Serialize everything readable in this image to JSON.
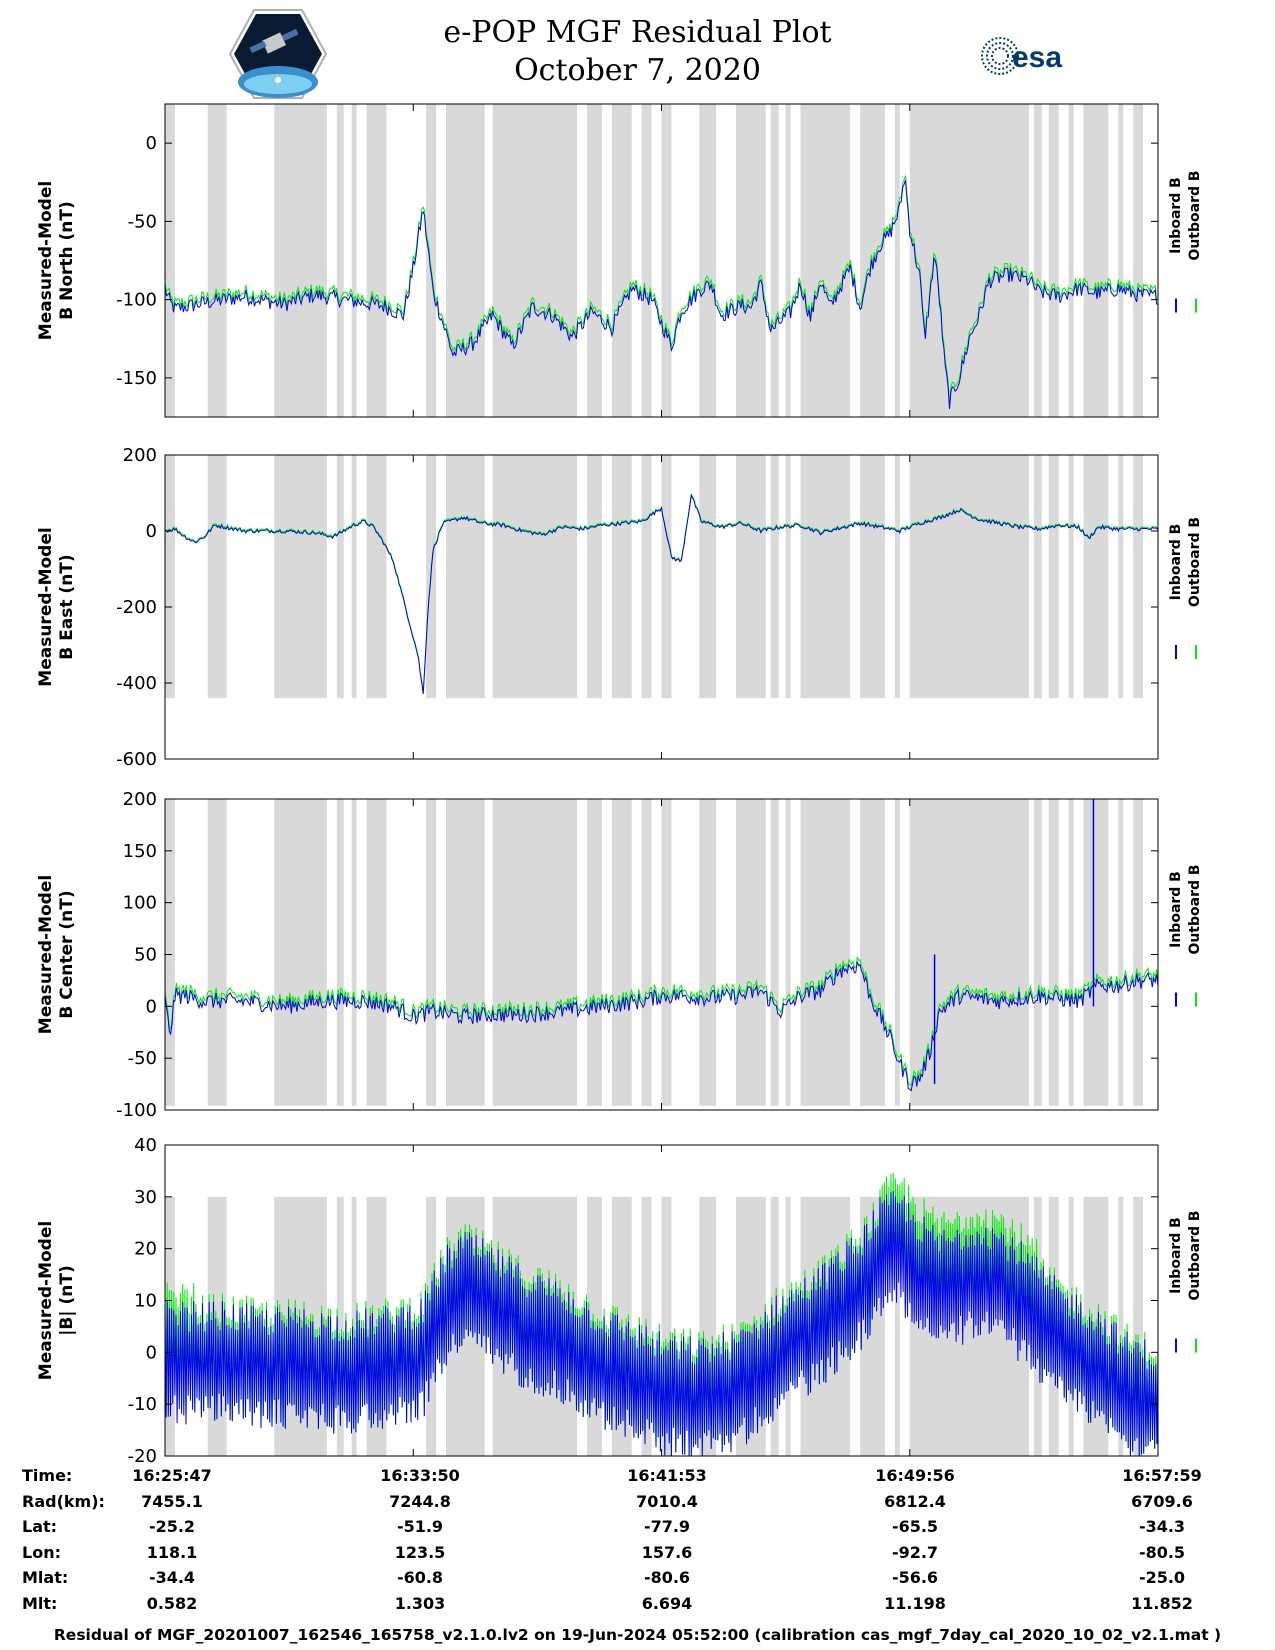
{
  "title": {
    "line1": "e-POP MGF Residual Plot",
    "line2": "October 7, 2020"
  },
  "logos": {
    "left_icon": "cassiope-satellite-logo",
    "right_text": "esa",
    "right_icon": "esa-logo"
  },
  "colors": {
    "inboard": "#0000ee",
    "outboard": "#00ee00",
    "shade": "#d9d9d9"
  },
  "chart_data": [
    {
      "type": "line",
      "ylabel_line1": "Measured-Model",
      "ylabel_line2": "B North (nT)",
      "ylim": [
        -175,
        25
      ],
      "yticks": [
        0,
        -50,
        -100,
        -150
      ],
      "shade_range": [
        -175,
        25
      ],
      "series": [
        {
          "name": "Inboard B"
        },
        {
          "name": "Outboard B"
        }
      ],
      "anchors": [
        [
          0,
          -93
        ],
        [
          0.005,
          -102
        ],
        [
          0.01,
          -106
        ],
        [
          0.04,
          -102
        ],
        [
          0.08,
          -98
        ],
        [
          0.12,
          -103
        ],
        [
          0.15,
          -97
        ],
        [
          0.17,
          -99
        ],
        [
          0.19,
          -101
        ],
        [
          0.22,
          -104
        ],
        [
          0.24,
          -110
        ],
        [
          0.25,
          -80
        ],
        [
          0.26,
          -42
        ],
        [
          0.27,
          -95
        ],
        [
          0.29,
          -135
        ],
        [
          0.31,
          -128
        ],
        [
          0.33,
          -110
        ],
        [
          0.35,
          -130
        ],
        [
          0.37,
          -105
        ],
        [
          0.39,
          -110
        ],
        [
          0.41,
          -124
        ],
        [
          0.43,
          -108
        ],
        [
          0.45,
          -118
        ],
        [
          0.47,
          -93
        ],
        [
          0.49,
          -100
        ],
        [
          0.51,
          -130
        ],
        [
          0.52,
          -107
        ],
        [
          0.54,
          -93
        ],
        [
          0.55,
          -90
        ],
        [
          0.56,
          -110
        ],
        [
          0.58,
          -104
        ],
        [
          0.59,
          -105
        ],
        [
          0.6,
          -90
        ],
        [
          0.61,
          -120
        ],
        [
          0.62,
          -114
        ],
        [
          0.63,
          -108
        ],
        [
          0.64,
          -90
        ],
        [
          0.65,
          -112
        ],
        [
          0.66,
          -88
        ],
        [
          0.67,
          -105
        ],
        [
          0.68,
          -92
        ],
        [
          0.69,
          -80
        ],
        [
          0.7,
          -105
        ],
        [
          0.71,
          -80
        ],
        [
          0.72,
          -65
        ],
        [
          0.73,
          -58
        ],
        [
          0.74,
          -42
        ],
        [
          0.745,
          -20
        ],
        [
          0.75,
          -55
        ],
        [
          0.76,
          -85
        ],
        [
          0.765,
          -125
        ],
        [
          0.77,
          -100
        ],
        [
          0.775,
          -70
        ],
        [
          0.78,
          -100
        ],
        [
          0.785,
          -140
        ],
        [
          0.79,
          -165
        ],
        [
          0.8,
          -150
        ],
        [
          0.81,
          -125
        ],
        [
          0.82,
          -110
        ],
        [
          0.83,
          -88
        ],
        [
          0.85,
          -84
        ],
        [
          0.87,
          -88
        ],
        [
          0.88,
          -95
        ],
        [
          0.9,
          -98
        ],
        [
          0.92,
          -93
        ],
        [
          0.94,
          -96
        ],
        [
          0.96,
          -93
        ],
        [
          0.98,
          -97
        ],
        [
          1.0,
          -98
        ]
      ],
      "noise": 5
    },
    {
      "type": "line",
      "ylabel_line1": "Measured-Model",
      "ylabel_line2": "B East (nT)",
      "ylim": [
        -600,
        200
      ],
      "yticks": [
        200,
        0,
        -200,
        -400,
        -600
      ],
      "shade_range": [
        -440,
        200
      ],
      "series": [
        {
          "name": "Inboard B"
        },
        {
          "name": "Outboard B"
        }
      ],
      "anchors": [
        [
          0,
          0
        ],
        [
          0.01,
          5
        ],
        [
          0.02,
          -15
        ],
        [
          0.03,
          -30
        ],
        [
          0.04,
          -15
        ],
        [
          0.05,
          15
        ],
        [
          0.08,
          0
        ],
        [
          0.12,
          0
        ],
        [
          0.15,
          -5
        ],
        [
          0.17,
          -15
        ],
        [
          0.19,
          15
        ],
        [
          0.2,
          25
        ],
        [
          0.21,
          10
        ],
        [
          0.22,
          -30
        ],
        [
          0.23,
          -80
        ],
        [
          0.24,
          -180
        ],
        [
          0.25,
          -280
        ],
        [
          0.255,
          -330
        ],
        [
          0.26,
          -430
        ],
        [
          0.265,
          -200
        ],
        [
          0.27,
          -50
        ],
        [
          0.28,
          20
        ],
        [
          0.3,
          35
        ],
        [
          0.32,
          20
        ],
        [
          0.34,
          15
        ],
        [
          0.36,
          0
        ],
        [
          0.38,
          -10
        ],
        [
          0.4,
          10
        ],
        [
          0.42,
          5
        ],
        [
          0.44,
          15
        ],
        [
          0.46,
          20
        ],
        [
          0.48,
          25
        ],
        [
          0.5,
          60
        ],
        [
          0.51,
          -70
        ],
        [
          0.52,
          -80
        ],
        [
          0.53,
          95
        ],
        [
          0.54,
          25
        ],
        [
          0.56,
          10
        ],
        [
          0.58,
          20
        ],
        [
          0.6,
          0
        ],
        [
          0.62,
          10
        ],
        [
          0.64,
          15
        ],
        [
          0.66,
          -5
        ],
        [
          0.7,
          20
        ],
        [
          0.74,
          0
        ],
        [
          0.76,
          20
        ],
        [
          0.78,
          35
        ],
        [
          0.8,
          55
        ],
        [
          0.82,
          30
        ],
        [
          0.84,
          20
        ],
        [
          0.86,
          10
        ],
        [
          0.88,
          5
        ],
        [
          0.9,
          15
        ],
        [
          0.92,
          10
        ],
        [
          0.93,
          -20
        ],
        [
          0.94,
          10
        ],
        [
          0.96,
          5
        ],
        [
          1.0,
          5
        ]
      ],
      "noise": 5
    },
    {
      "type": "line",
      "ylabel_line1": "Measured-Model",
      "ylabel_line2": "B Center (nT)",
      "ylim": [
        -100,
        200
      ],
      "yticks": [
        200,
        150,
        100,
        50,
        0,
        -50,
        -100
      ],
      "shade_range": [
        -96,
        200
      ],
      "series": [
        {
          "name": "Inboard B"
        },
        {
          "name": "Outboard B"
        }
      ],
      "anchors": [
        [
          0,
          5
        ],
        [
          0.005,
          -28
        ],
        [
          0.01,
          10
        ],
        [
          0.02,
          10
        ],
        [
          0.04,
          5
        ],
        [
          0.08,
          5
        ],
        [
          0.12,
          0
        ],
        [
          0.16,
          5
        ],
        [
          0.2,
          5
        ],
        [
          0.23,
          0
        ],
        [
          0.25,
          -10
        ],
        [
          0.27,
          -5
        ],
        [
          0.3,
          -10
        ],
        [
          0.33,
          -8
        ],
        [
          0.36,
          -8
        ],
        [
          0.4,
          -5
        ],
        [
          0.44,
          0
        ],
        [
          0.48,
          5
        ],
        [
          0.5,
          10
        ],
        [
          0.52,
          10
        ],
        [
          0.55,
          8
        ],
        [
          0.58,
          10
        ],
        [
          0.6,
          15
        ],
        [
          0.62,
          -5
        ],
        [
          0.64,
          10
        ],
        [
          0.66,
          15
        ],
        [
          0.68,
          35
        ],
        [
          0.7,
          40
        ],
        [
          0.71,
          10
        ],
        [
          0.72,
          -10
        ],
        [
          0.73,
          -30
        ],
        [
          0.74,
          -55
        ],
        [
          0.75,
          -75
        ],
        [
          0.76,
          -70
        ],
        [
          0.77,
          -45
        ],
        [
          0.78,
          -5
        ],
        [
          0.8,
          10
        ],
        [
          0.84,
          5
        ],
        [
          0.88,
          10
        ],
        [
          0.92,
          5
        ],
        [
          0.94,
          20
        ],
        [
          0.96,
          20
        ],
        [
          0.98,
          25
        ],
        [
          1.0,
          25
        ]
      ],
      "spikes": [
        [
          0.775,
          -75,
          50
        ],
        [
          0.935,
          0,
          200
        ]
      ],
      "noise": 8
    },
    {
      "type": "line",
      "ylabel_line1": "Measured-Model",
      "ylabel_line2": "|B| (nT)",
      "ylim": [
        -20,
        40
      ],
      "yticks": [
        40,
        30,
        20,
        10,
        0,
        -10,
        -20
      ],
      "shade_range": [
        -20,
        30
      ],
      "series": [
        {
          "name": "Inboard B"
        },
        {
          "name": "Outboard B"
        }
      ],
      "anchors": [
        [
          0,
          -2
        ],
        [
          0.06,
          -2
        ],
        [
          0.1,
          -3
        ],
        [
          0.14,
          -3
        ],
        [
          0.18,
          -4
        ],
        [
          0.22,
          -3
        ],
        [
          0.26,
          -1
        ],
        [
          0.28,
          8
        ],
        [
          0.3,
          12
        ],
        [
          0.32,
          10
        ],
        [
          0.36,
          5
        ],
        [
          0.4,
          2
        ],
        [
          0.44,
          -3
        ],
        [
          0.48,
          -6
        ],
        [
          0.5,
          -8
        ],
        [
          0.54,
          -9
        ],
        [
          0.58,
          -7
        ],
        [
          0.62,
          0
        ],
        [
          0.66,
          5
        ],
        [
          0.7,
          12
        ],
        [
          0.72,
          18
        ],
        [
          0.74,
          20
        ],
        [
          0.76,
          15
        ],
        [
          0.78,
          12
        ],
        [
          0.8,
          13
        ],
        [
          0.82,
          15
        ],
        [
          0.84,
          13
        ],
        [
          0.86,
          10
        ],
        [
          0.9,
          2
        ],
        [
          0.94,
          -3
        ],
        [
          0.97,
          -8
        ],
        [
          1.0,
          -10
        ]
      ],
      "envelope": 10
    }
  ],
  "shading_bands": [
    [
      0.0,
      0.01
    ],
    [
      0.043,
      0.062
    ],
    [
      0.11,
      0.163
    ],
    [
      0.173,
      0.18
    ],
    [
      0.188,
      0.193
    ],
    [
      0.203,
      0.223
    ],
    [
      0.263,
      0.273
    ],
    [
      0.283,
      0.322
    ],
    [
      0.33,
      0.415
    ],
    [
      0.425,
      0.44
    ],
    [
      0.45,
      0.47
    ],
    [
      0.48,
      0.49
    ],
    [
      0.5,
      0.51
    ],
    [
      0.538,
      0.555
    ],
    [
      0.575,
      0.605
    ],
    [
      0.61,
      0.618
    ],
    [
      0.625,
      0.63
    ],
    [
      0.64,
      0.69
    ],
    [
      0.7,
      0.725
    ],
    [
      0.735,
      0.74
    ],
    [
      0.75,
      0.87
    ],
    [
      0.875,
      0.883
    ],
    [
      0.89,
      0.9
    ],
    [
      0.91,
      0.915
    ],
    [
      0.925,
      0.95
    ],
    [
      0.96,
      0.965
    ],
    [
      0.975,
      0.985
    ]
  ],
  "legend": {
    "inboard": "Inboard B",
    "outboard": "Outboard B"
  },
  "xaxis": {
    "labels_header": [
      "Time:",
      "Rad(km):",
      "Lat:",
      "Lon:",
      "Mlat:",
      "Mlt:"
    ],
    "columns": [
      {
        "time": "16:25:47",
        "rad": "7455.1",
        "lat": "-25.2",
        "lon": "118.1",
        "mlat": "-34.4",
        "mlt": "0.582"
      },
      {
        "time": "16:33:50",
        "rad": "7244.8",
        "lat": "-51.9",
        "lon": "123.5",
        "mlat": "-60.8",
        "mlt": "1.303"
      },
      {
        "time": "16:41:53",
        "rad": "7010.4",
        "lat": "-77.9",
        "lon": "157.6",
        "mlat": "-80.6",
        "mlt": "6.694"
      },
      {
        "time": "16:49:56",
        "rad": "6812.4",
        "lat": "-65.5",
        "lon": "-92.7",
        "mlat": "-56.6",
        "mlt": "11.198"
      },
      {
        "time": "16:57:59",
        "rad": "6709.6",
        "lat": "-34.3",
        "lon": "-80.5",
        "mlat": "-25.0",
        "mlt": "11.852"
      }
    ]
  },
  "footer": "Residual of MGF_20201007_162546_165758_v2.1.0.lv2 on 19-Jun-2024 05:52:00 (calibration cas_mgf_7day_cal_2020_10_02_v2.1.mat )"
}
